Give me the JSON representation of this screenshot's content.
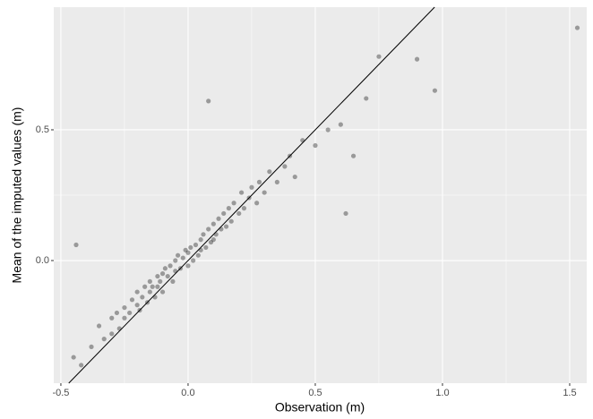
{
  "chart_data": {
    "type": "scatter",
    "x_label": "Observation (m)",
    "y_label": "Mean of the imputed values (m)",
    "color": "#000000",
    "diagonal": true,
    "grid": true,
    "xlim": [
      -0.528,
      1.567
    ],
    "ylim": [
      -0.469,
      0.969
    ],
    "xticks": [
      -0.5,
      {
        "value": 0,
        "label": "0.0"
      },
      0.5,
      {
        "value": 1,
        "label": "1.0"
      },
      1.5
    ],
    "yticks": [
      {
        "value": 0,
        "label": "0.0"
      },
      0.5
    ],
    "x": [
      -0.45,
      -0.42,
      -0.38,
      -0.35,
      -0.33,
      -0.3,
      -0.3,
      -0.28,
      -0.27,
      -0.25,
      -0.25,
      -0.23,
      -0.22,
      -0.2,
      -0.2,
      -0.19,
      -0.18,
      -0.17,
      -0.16,
      -0.15,
      -0.15,
      -0.14,
      -0.13,
      -0.12,
      -0.12,
      -0.11,
      -0.1,
      -0.1,
      -0.09,
      -0.08,
      -0.07,
      -0.06,
      -0.05,
      -0.05,
      -0.04,
      -0.03,
      -0.02,
      -0.01,
      0,
      0,
      0.01,
      0.02,
      0.03,
      0.04,
      0.05,
      0.05,
      0.06,
      0.07,
      0.08,
      0.09,
      0.1,
      0.1,
      0.11,
      0.12,
      0.13,
      0.14,
      0.15,
      0.16,
      0.17,
      0.18,
      0.2,
      0.21,
      0.22,
      0.24,
      0.25,
      0.27,
      0.28,
      0.3,
      0.32,
      0.35,
      0.38,
      0.4,
      0.42,
      0.45,
      0.5,
      0.55,
      0.6,
      0.65,
      0.7,
      0.75,
      0.9,
      0.97,
      1.53,
      -0.44,
      0.08,
      0.62
    ],
    "values": [
      -0.37,
      -0.4,
      -0.33,
      -0.25,
      -0.3,
      -0.22,
      -0.28,
      -0.2,
      -0.26,
      -0.18,
      -0.22,
      -0.2,
      -0.15,
      -0.17,
      -0.12,
      -0.19,
      -0.14,
      -0.1,
      -0.16,
      -0.12,
      -0.08,
      -0.1,
      -0.14,
      -0.06,
      -0.1,
      -0.08,
      -0.05,
      -0.12,
      -0.03,
      -0.06,
      -0.02,
      -0.08,
      0,
      -0.04,
      0.02,
      -0.03,
      0.01,
      0.04,
      -0.02,
      0.03,
      0.05,
      0,
      0.06,
      0.02,
      0.08,
      0.04,
      0.1,
      0.05,
      0.12,
      0.07,
      0.14,
      0.08,
      0.1,
      0.16,
      0.12,
      0.18,
      0.13,
      0.2,
      0.15,
      0.22,
      0.18,
      0.26,
      0.2,
      0.24,
      0.28,
      0.22,
      0.3,
      0.26,
      0.34,
      0.3,
      0.36,
      0.4,
      0.32,
      0.46,
      0.44,
      0.5,
      0.52,
      0.4,
      0.62,
      0.78,
      0.77,
      0.65,
      0.89,
      0.06,
      0.61,
      0.18
    ]
  }
}
